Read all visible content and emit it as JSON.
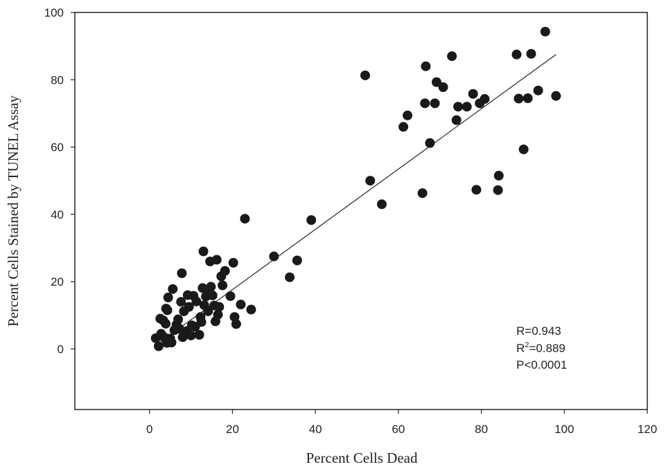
{
  "chart_data": {
    "type": "scatter",
    "title": "",
    "xlabel": "Percent Cells Dead",
    "ylabel": "Percent Cells Stained by TUNEL Assay",
    "xlim": [
      -18,
      120
    ],
    "ylim": [
      -18,
      100
    ],
    "xticks": [
      0,
      20,
      40,
      60,
      80,
      100,
      120
    ],
    "yticks": [
      0,
      20,
      40,
      60,
      80,
      100
    ],
    "grid": false,
    "legend": "none",
    "point_color": "#1a1a1a",
    "line_color": "#333333",
    "regression_line": {
      "x": [
        2,
        98
      ],
      "y": [
        1.5,
        87.5
      ]
    },
    "annotations": {
      "r": "R=0.943",
      "r2_prefix": "R",
      "r2_sup": "2",
      "r2_value": "=0.889",
      "p": "P<0.0001"
    },
    "points": [
      [
        1.5,
        3.2
      ],
      [
        2.2,
        0.8
      ],
      [
        2.8,
        4.5
      ],
      [
        2.6,
        9
      ],
      [
        3.3,
        8.5
      ],
      [
        3.5,
        3.5
      ],
      [
        3.9,
        7.5
      ],
      [
        4.0,
        12
      ],
      [
        4.3,
        11.5
      ],
      [
        4.5,
        15.3
      ],
      [
        4.2,
        1.8
      ],
      [
        4.8,
        2.6
      ],
      [
        5.3,
        1.9
      ],
      [
        5.0,
        3.1
      ],
      [
        5.6,
        17.8
      ],
      [
        6.0,
        5.6
      ],
      [
        6.5,
        7.2
      ],
      [
        6.9,
        8.8
      ],
      [
        7.2,
        6.0
      ],
      [
        7.6,
        14.0
      ],
      [
        7.8,
        22.5
      ],
      [
        8.0,
        3.5
      ],
      [
        8.3,
        11.2
      ],
      [
        9.0,
        5.3
      ],
      [
        9.2,
        16.0
      ],
      [
        9.5,
        12.5
      ],
      [
        10.2,
        7.0
      ],
      [
        10.0,
        4.0
      ],
      [
        10.6,
        15.8
      ],
      [
        11.0,
        6.6
      ],
      [
        11.3,
        14.1
      ],
      [
        12.0,
        4.2
      ],
      [
        12.3,
        9.5
      ],
      [
        12.5,
        8.0
      ],
      [
        12.8,
        18.1
      ],
      [
        13.0,
        29.0
      ],
      [
        13.2,
        13.0
      ],
      [
        13.6,
        15.6
      ],
      [
        14.1,
        11.2
      ],
      [
        14.4,
        17.2
      ],
      [
        14.6,
        26.0
      ],
      [
        14.8,
        18.5
      ],
      [
        15.2,
        15.9
      ],
      [
        15.6,
        12.9
      ],
      [
        15.9,
        8.2
      ],
      [
        16.2,
        26.5
      ],
      [
        16.5,
        10.2
      ],
      [
        16.8,
        12.5
      ],
      [
        17.3,
        21.6
      ],
      [
        17.6,
        18.9
      ],
      [
        18.2,
        23.2
      ],
      [
        19.5,
        15.7
      ],
      [
        20.2,
        25.6
      ],
      [
        20.5,
        9.5
      ],
      [
        20.9,
        7.4
      ],
      [
        22.0,
        13.2
      ],
      [
        23.0,
        38.7
      ],
      [
        24.5,
        11.7
      ],
      [
        30.0,
        27.5
      ],
      [
        33.8,
        21.3
      ],
      [
        35.6,
        26.3
      ],
      [
        39.0,
        38.3
      ],
      [
        52.0,
        81.3
      ],
      [
        53.2,
        50.0
      ],
      [
        56.0,
        43.0
      ],
      [
        61.2,
        66.0
      ],
      [
        62.2,
        69.4
      ],
      [
        65.8,
        46.3
      ],
      [
        66.6,
        84.0
      ],
      [
        66.4,
        73.0
      ],
      [
        67.6,
        61.2
      ],
      [
        68.8,
        73.0
      ],
      [
        69.2,
        79.3
      ],
      [
        70.8,
        77.8
      ],
      [
        72.9,
        87.0
      ],
      [
        74.0,
        68.0
      ],
      [
        74.4,
        72.0
      ],
      [
        76.5,
        72.0
      ],
      [
        78.0,
        75.8
      ],
      [
        78.8,
        47.3
      ],
      [
        79.6,
        73.0
      ],
      [
        80.8,
        74.3
      ],
      [
        84.0,
        47.2
      ],
      [
        84.2,
        51.5
      ],
      [
        88.5,
        87.5
      ],
      [
        89.0,
        74.4
      ],
      [
        90.2,
        59.3
      ],
      [
        91.2,
        74.5
      ],
      [
        92.0,
        87.7
      ],
      [
        93.7,
        76.8
      ],
      [
        95.4,
        94.3
      ],
      [
        98.0,
        75.2
      ]
    ]
  }
}
